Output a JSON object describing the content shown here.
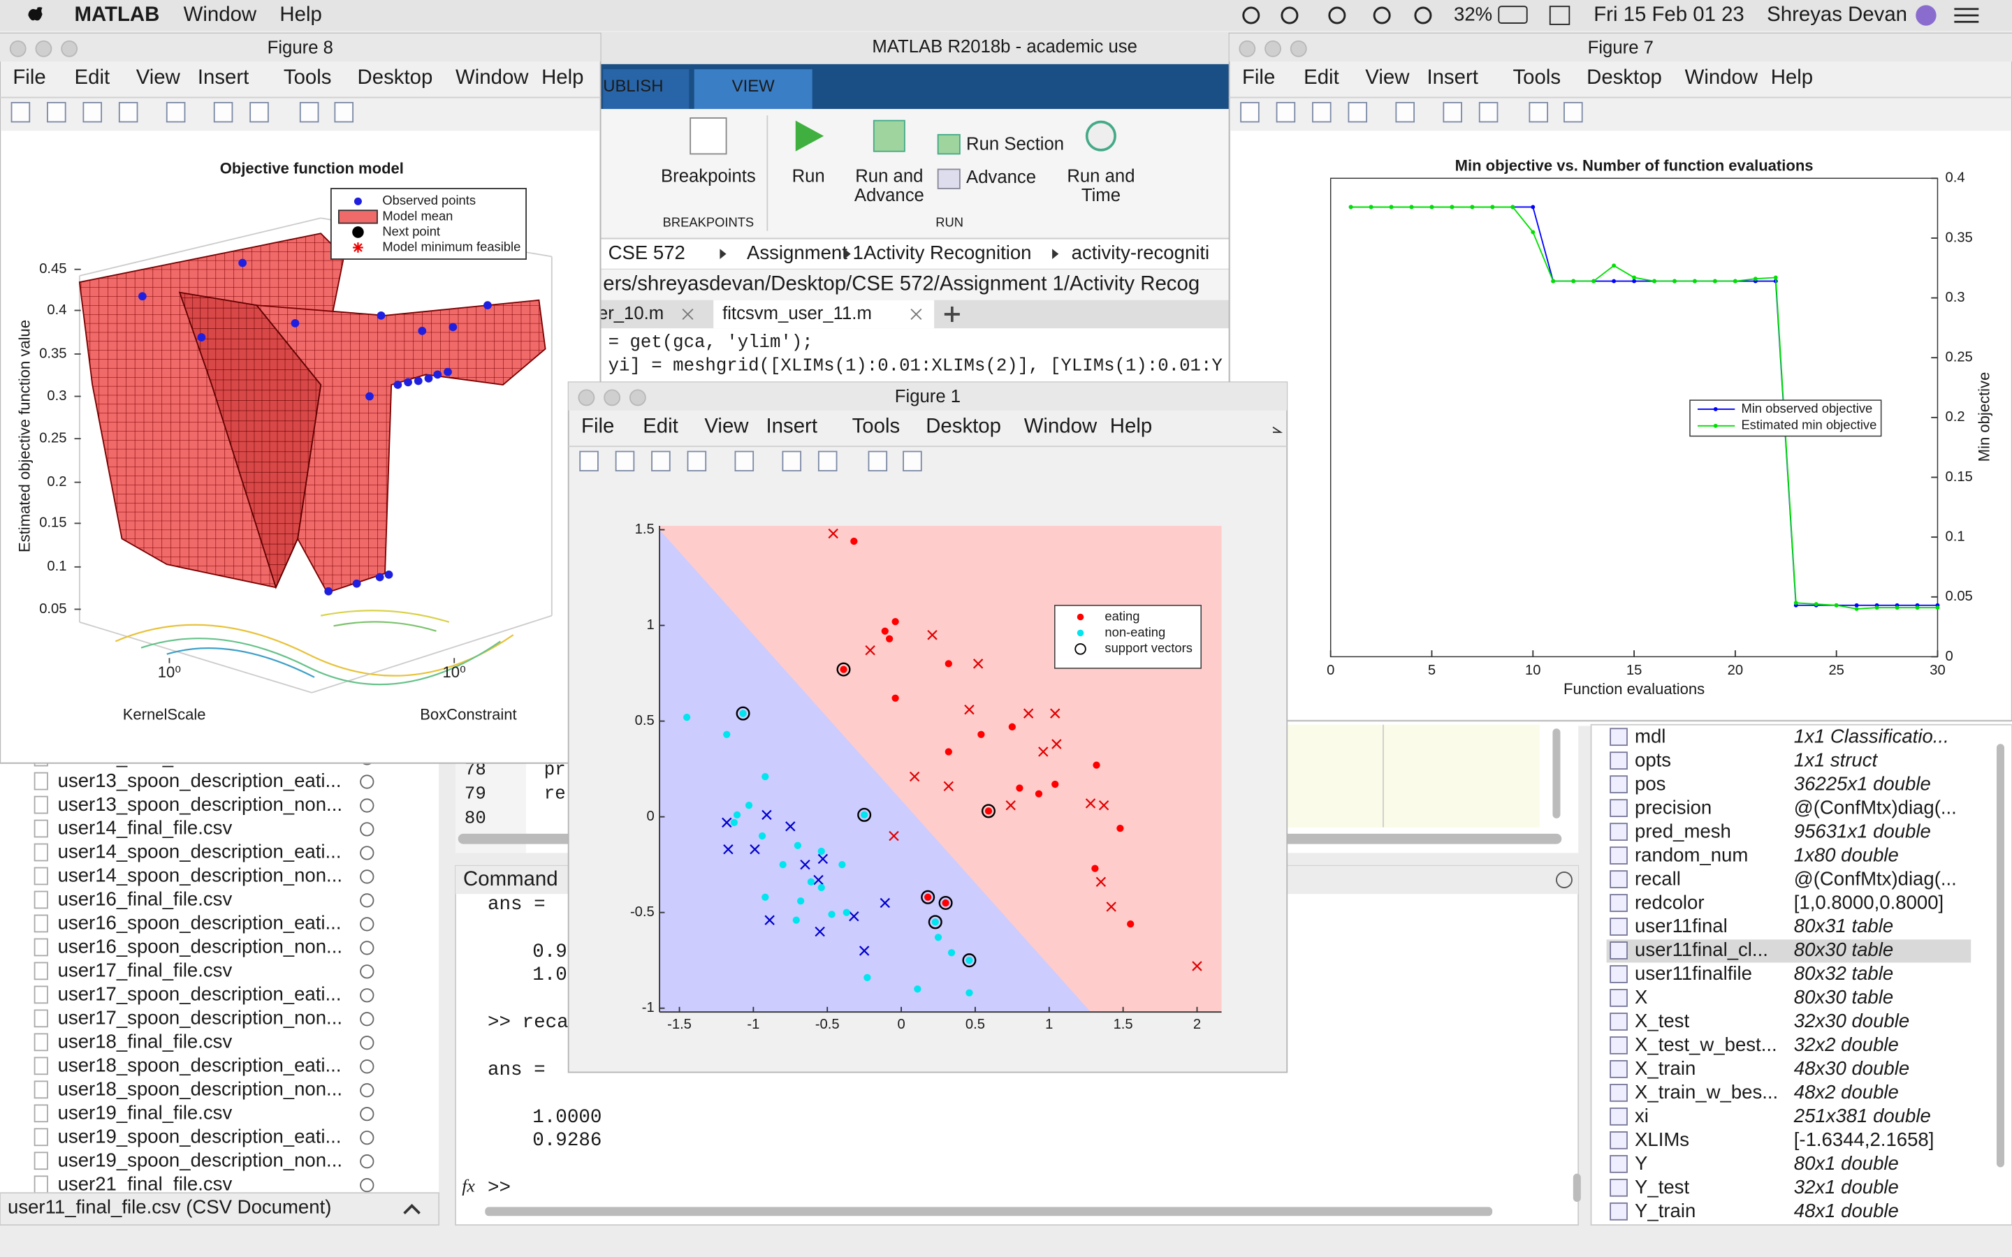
{
  "menubar": {
    "app": "MATLAB",
    "menus": [
      "Window",
      "Help"
    ],
    "battery": "32%",
    "clock": "Fri 15 Feb  01 23",
    "user": "Shreyas Devan"
  },
  "main_window": {
    "title": "MATLAB R2018b - academic use",
    "ribbon_tabs": [
      "UBLISH",
      "VIEW"
    ],
    "ribbon": {
      "breakpoints": "Breakpoints",
      "breakpoints_group": "BREAKPOINTS",
      "run": "Run",
      "run_and_advance": [
        "Run and",
        "Advance"
      ],
      "run_section": "Run Section",
      "advance": "Advance",
      "run_and_time": [
        "Run and",
        "Time"
      ],
      "run_group": "RUN"
    },
    "breadcrumb": [
      "CSE 572",
      "Assignment 1",
      "Activity Recognition",
      "activity-recogniti"
    ],
    "path": "ers/shreyasdevan/Desktop/CSE 572/Assignment 1/Activity Recog",
    "editor_tabs": [
      "er_10.m",
      "fitcsvm_user_11.m"
    ],
    "code": [
      " = get(gca, 'ylim');",
      "yi] = meshgrid([XLIMs(1):0.01:XLIMs(2)], [YLIMs(1):0.01:Y"
    ],
    "lower_line_numbers": [
      "78",
      "79",
      "80"
    ],
    "lower_code": [
      "pr",
      "re"
    ]
  },
  "file_browser": {
    "files": [
      "user13_final_file.csv",
      "user13_spoon_description_eati...",
      "user13_spoon_description_non...",
      "user14_final_file.csv",
      "user14_spoon_description_eati...",
      "user14_spoon_description_non...",
      "user16_final_file.csv",
      "user16_spoon_description_eati...",
      "user16_spoon_description_non...",
      "user17_final_file.csv",
      "user17_spoon_description_eati...",
      "user17_spoon_description_non...",
      "user18_final_file.csv",
      "user18_spoon_description_eati...",
      "user18_spoon_description_non...",
      "user19_final_file.csv",
      "user19_spoon_description_eati...",
      "user19_spoon_description_non...",
      "user21_final_file.csv"
    ],
    "status": "user11_final_file.csv  (CSV Document)"
  },
  "command_window": {
    "title": "Command",
    "lines": [
      "ans =",
      "0.9",
      "1.0",
      ">> reca",
      "ans =",
      "1.0000",
      "0.9286"
    ],
    "prompt_icon": "fx",
    "prompt": ">>"
  },
  "workspace": {
    "rows": [
      [
        "mdl",
        "1x1 Classificatio..."
      ],
      [
        "opts",
        "1x1 struct"
      ],
      [
        "pos",
        "36225x1 double"
      ],
      [
        "precision",
        "@(ConfMtx)diag(..."
      ],
      [
        "pred_mesh",
        "95631x1 double"
      ],
      [
        "random_num",
        "1x80 double"
      ],
      [
        "recall",
        "@(ConfMtx)diag(..."
      ],
      [
        "redcolor",
        "[1,0.8000,0.8000]"
      ],
      [
        "user11final",
        "80x31 table"
      ],
      [
        "user11final_cl...",
        "80x30 table"
      ],
      [
        "user11finalfile",
        "80x32 table"
      ],
      [
        "X",
        "80x30 table"
      ],
      [
        "X_test",
        "32x30 double"
      ],
      [
        "X_test_w_best...",
        "32x2 double"
      ],
      [
        "X_train",
        "48x30 double"
      ],
      [
        "X_train_w_bes...",
        "48x2 double"
      ],
      [
        "xi",
        "251x381 double"
      ],
      [
        "XLIMs",
        "[-1.6344,2.1658]"
      ],
      [
        "Y",
        "80x1 double"
      ],
      [
        "Y_test",
        "32x1 double"
      ],
      [
        "Y_train",
        "48x1 double"
      ]
    ]
  },
  "figures": [
    {
      "title": "Figure 8",
      "menus": [
        "File",
        "Edit",
        "View",
        "Insert",
        "Tools",
        "Desktop",
        "Window",
        "Help"
      ],
      "chart_data": {
        "type": "surface3d",
        "title": "Objective function model",
        "zlabel": "Estimated objective function value",
        "xlabel": "KernelScale",
        "ylabel": "BoxConstraint",
        "zticks": [
          0.05,
          0.1,
          0.15,
          0.2,
          0.25,
          0.3,
          0.35,
          0.4,
          0.45
        ],
        "xticks": [
          {
            "value": 1,
            "label": "10⁰"
          }
        ],
        "yticks": [
          {
            "value": 1,
            "label": "10⁰"
          }
        ],
        "legend": [
          "Observed points",
          "Model mean",
          "Next point",
          "Model minimum feasible"
        ]
      }
    },
    {
      "title": "Figure 7",
      "menus": [
        "File",
        "Edit",
        "View",
        "Insert",
        "Tools",
        "Desktop",
        "Window",
        "Help"
      ],
      "chart_data": {
        "type": "line",
        "title": "Min objective vs. Number of function evaluations",
        "xlabel": "Function evaluations",
        "ylabel": "Min objective",
        "x": [
          1,
          2,
          3,
          4,
          5,
          6,
          7,
          8,
          9,
          10,
          11,
          12,
          13,
          14,
          15,
          16,
          17,
          18,
          19,
          20,
          21,
          22,
          23,
          24,
          25,
          26,
          27,
          28,
          29,
          30
        ],
        "series": [
          {
            "name": "Min observed objective",
            "color": "#0000ff",
            "values": [
              0.376,
              0.376,
              0.376,
              0.376,
              0.376,
              0.376,
              0.376,
              0.376,
              0.376,
              0.376,
              0.314,
              0.314,
              0.314,
              0.314,
              0.314,
              0.314,
              0.314,
              0.314,
              0.314,
              0.314,
              0.314,
              0.314,
              0.043,
              0.043,
              0.043,
              0.043,
              0.043,
              0.043,
              0.043,
              0.043
            ]
          },
          {
            "name": "Estimated min objective",
            "color": "#00e000",
            "values": [
              0.376,
              0.376,
              0.376,
              0.376,
              0.376,
              0.376,
              0.376,
              0.376,
              0.376,
              0.355,
              0.314,
              0.314,
              0.314,
              0.327,
              0.317,
              0.314,
              0.314,
              0.314,
              0.314,
              0.314,
              0.316,
              0.317,
              0.045,
              0.044,
              0.043,
              0.04,
              0.041,
              0.041,
              0.041,
              0.041
            ]
          }
        ],
        "xlim": [
          0,
          30
        ],
        "xticks": [
          0,
          5,
          10,
          15,
          20,
          25,
          30
        ],
        "ylim": [
          0,
          0.4
        ],
        "yticks": [
          0,
          0.05,
          0.1,
          0.15,
          0.2,
          0.25,
          0.3,
          0.35,
          0.4
        ],
        "y_axis_side": "right",
        "legend_position": "right"
      }
    },
    {
      "title": "Figure 1",
      "menus": [
        "File",
        "Edit",
        "View",
        "Insert",
        "Tools",
        "Desktop",
        "Window",
        "Help"
      ],
      "chart_data": {
        "type": "scatter",
        "region_colors": [
          "#ffcccc",
          "#ccccff"
        ],
        "series": [
          {
            "name": "eating",
            "color": "#ff0000",
            "marker": "dot",
            "x": [
              -0.32,
              -0.04,
              -0.11,
              -0.08,
              -0.39,
              0.32,
              -0.04,
              0.75,
              0.54,
              0.32,
              1.32,
              0.8,
              0.93,
              1.04,
              0.59,
              1.48,
              1.31,
              1.55,
              0.18,
              0.3
            ],
            "values": [
              1.44,
              1.02,
              0.97,
              0.93,
              0.77,
              0.8,
              0.62,
              0.47,
              0.43,
              0.34,
              0.27,
              0.15,
              0.12,
              0.17,
              0.03,
              -0.06,
              -0.27,
              -0.56,
              -0.42,
              -0.45
            ]
          },
          {
            "name": "non-eating",
            "color": "#00e5ee",
            "marker": "dot",
            "x": [
              -1.45,
              -1.07,
              -1.18,
              -0.92,
              -1.11,
              -1.03,
              -1.13,
              -0.25,
              -0.94,
              -0.7,
              -0.54,
              -0.4,
              -0.8,
              -0.61,
              -0.92,
              -0.68,
              -0.47,
              -0.37,
              -0.71,
              0.23,
              0.25,
              0.34,
              0.46,
              -0.23,
              0.11,
              0.46,
              -0.54
            ],
            "values": [
              0.52,
              0.54,
              0.43,
              0.21,
              0.01,
              0.06,
              -0.03,
              0.01,
              -0.1,
              -0.15,
              -0.18,
              -0.25,
              -0.25,
              -0.34,
              -0.42,
              -0.44,
              -0.51,
              -0.5,
              -0.54,
              -0.55,
              -0.63,
              -0.71,
              -0.75,
              -0.84,
              -0.9,
              -0.92,
              -0.37
            ]
          },
          {
            "color": "#e00000",
            "marker": "x",
            "x": [
              -0.46,
              -0.21,
              0.21,
              0.52,
              0.46,
              0.86,
              1.04,
              0.96,
              1.05,
              0.09,
              0.32,
              0.74,
              1.28,
              1.37,
              1.35,
              1.42,
              2.0,
              -0.05
            ],
            "values": [
              1.48,
              0.87,
              0.95,
              0.8,
              0.56,
              0.54,
              0.54,
              0.34,
              0.38,
              0.21,
              0.16,
              0.06,
              0.07,
              0.06,
              -0.34,
              -0.47,
              -0.78,
              -0.1
            ]
          },
          {
            "color": "#0000cc",
            "marker": "x",
            "x": [
              -1.18,
              -0.91,
              -0.75,
              -0.99,
              -0.53,
              -0.65,
              -0.56,
              -0.89,
              -0.55,
              -0.32,
              -0.11,
              -0.25,
              -1.17
            ],
            "values": [
              -0.03,
              0.01,
              -0.05,
              -0.17,
              -0.22,
              -0.25,
              -0.33,
              -0.54,
              -0.6,
              -0.52,
              -0.45,
              -0.7,
              -0.17
            ]
          },
          {
            "name": "support vectors",
            "color": "#000000",
            "marker": "circle",
            "x": [
              -0.39,
              -1.07,
              -0.25,
              0.59,
              0.18,
              0.3,
              0.23,
              0.46
            ],
            "values": [
              0.77,
              0.54,
              0.01,
              0.03,
              -0.42,
              -0.45,
              -0.55,
              -0.75
            ]
          }
        ],
        "xlim": [
          -1.6344,
          2.1658
        ],
        "xticks": [
          -1.5,
          -1,
          -0.5,
          0,
          0.5,
          1,
          1.5,
          2
        ],
        "ylim": [
          -1.02,
          1.52
        ],
        "yticks": [
          -1,
          -0.5,
          0,
          0.5,
          1,
          1.5
        ],
        "legend_position": "upper right"
      }
    }
  ]
}
